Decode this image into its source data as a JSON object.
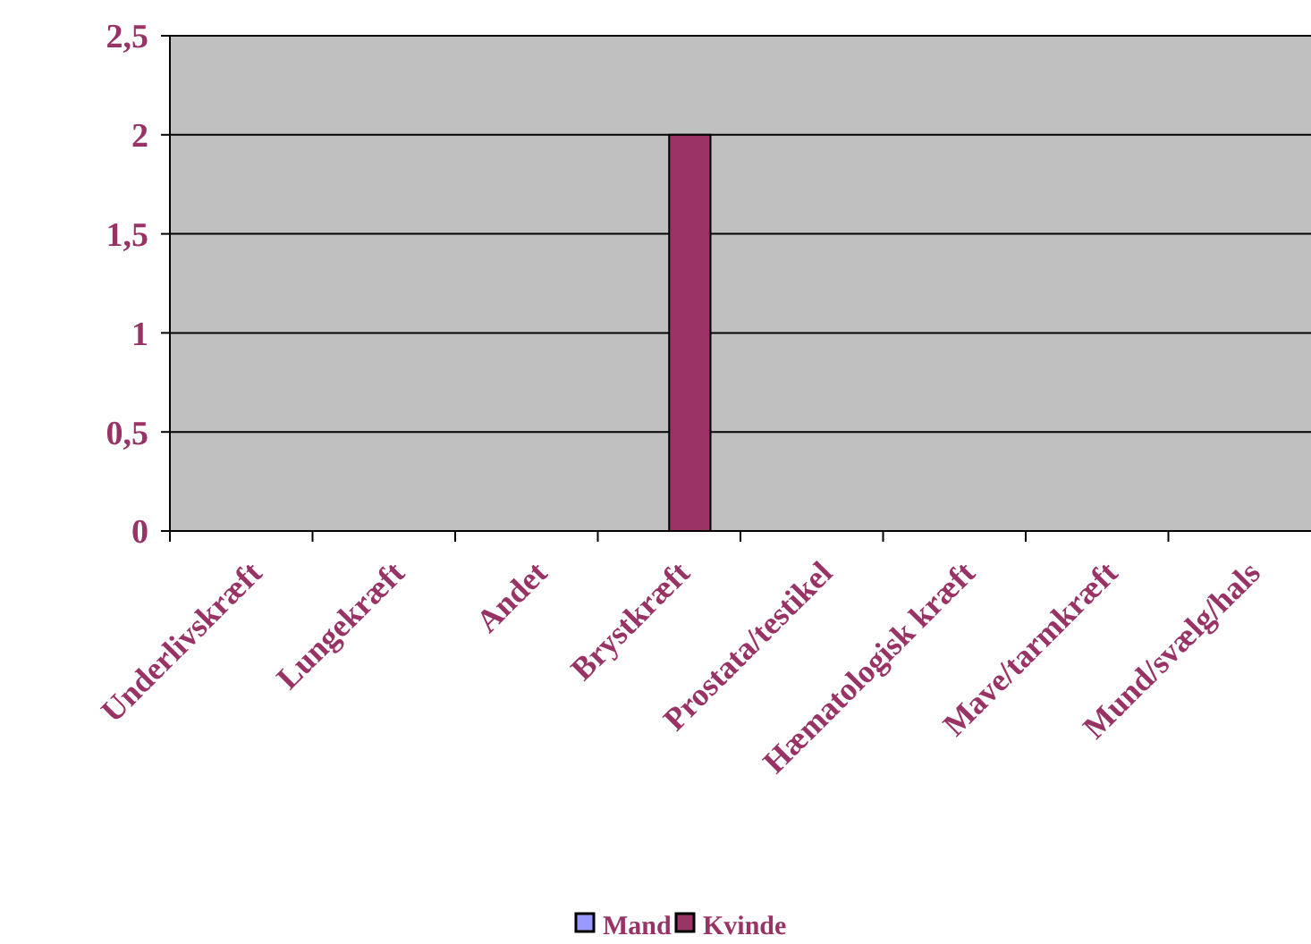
{
  "chart_data": {
    "type": "bar",
    "categories": [
      "Underlivskræft",
      "Lungekræft",
      "Andet",
      "Brystkræft",
      "Prostata/testikel",
      "Hæmatologisk kræft",
      "Mave/tarmkræft",
      "Mund/svælg/hals"
    ],
    "series": [
      {
        "name": "Mand",
        "color": "#9999ff",
        "values": [
          0,
          0,
          0,
          0,
          0,
          0,
          0,
          0
        ]
      },
      {
        "name": "Kvinde",
        "color": "#993366",
        "values": [
          0,
          0,
          0,
          2,
          0,
          0,
          0,
          0
        ]
      }
    ],
    "ylim": [
      0,
      2.5
    ],
    "yticks": [
      {
        "value": 0,
        "label": "0"
      },
      {
        "value": 0.5,
        "label": "0,5"
      },
      {
        "value": 1,
        "label": "1"
      },
      {
        "value": 1.5,
        "label": "1,5"
      },
      {
        "value": 2,
        "label": "2"
      },
      {
        "value": 2.5,
        "label": "2,5"
      }
    ],
    "grid": "y",
    "legend": "bottom"
  }
}
